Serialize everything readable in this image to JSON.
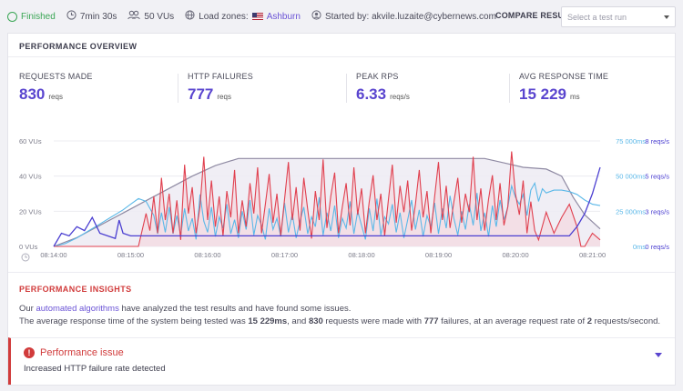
{
  "topbar": {
    "status": "Finished",
    "duration": "7min 30s",
    "vus": "50 VUs",
    "load_zones_label": "Load zones:",
    "load_zone": "Ashburn",
    "started_by": "Started by: akvile.luzaite@cybernews.com",
    "compare_label": "COMPARE RESULT",
    "compare_placeholder": "Select a test run"
  },
  "overview": {
    "title": "PERFORMANCE OVERVIEW",
    "stats": [
      {
        "label": "REQUESTS MADE",
        "value": "830",
        "unit": "reqs"
      },
      {
        "label": "HTTP FAILURES",
        "value": "777",
        "unit": "reqs"
      },
      {
        "label": "PEAK RPS",
        "value": "6.33",
        "unit": "reqs/s"
      },
      {
        "label": "AVG RESPONSE TIME",
        "value": "15 229",
        "unit": "ms"
      }
    ]
  },
  "chart_data": {
    "type": "line",
    "x_ticks": [
      "08:14:00",
      "08:15:00",
      "08:16:00",
      "08:17:00",
      "08:18:00",
      "08:19:00",
      "08:20:00",
      "08:21:00"
    ],
    "y_left_ticks": [
      "0 VUs",
      "20 VUs",
      "40 VUs",
      "60 VUs"
    ],
    "y_right_ms_ticks": [
      "0ms",
      "25 000ms",
      "50 000ms",
      "75 000ms"
    ],
    "y_right_rps_ticks": [
      "0 reqs/s",
      "3 reqs/s",
      "5 reqs/s",
      "8 reqs/s"
    ],
    "ylim_vus": [
      0,
      60
    ],
    "ylim_ms": [
      0,
      75000
    ],
    "ylim_rps": [
      0,
      8
    ],
    "x_range_min": [
      0,
      7.1
    ],
    "colors": {
      "vus": "#8f8aa3",
      "response_time": "#5bb8e8",
      "failures": "#e0404f",
      "rps": "#4b3fd1"
    },
    "vus": [
      [
        0,
        0
      ],
      [
        0.3,
        5
      ],
      [
        0.6,
        12
      ],
      [
        0.9,
        19
      ],
      [
        1.2,
        26
      ],
      [
        1.5,
        33
      ],
      [
        1.8,
        40
      ],
      [
        2.1,
        46
      ],
      [
        2.4,
        50
      ],
      [
        2.6,
        50
      ],
      [
        4.0,
        50
      ],
      [
        5.6,
        50
      ],
      [
        5.9,
        47
      ],
      [
        6.1,
        45
      ],
      [
        6.4,
        44
      ],
      [
        6.6,
        40
      ],
      [
        6.75,
        28
      ],
      [
        6.9,
        18
      ],
      [
        7.0,
        14
      ],
      [
        7.1,
        10
      ]
    ],
    "response_time_ms": [
      [
        0,
        0
      ],
      [
        0.15,
        2000
      ],
      [
        0.3,
        6000
      ],
      [
        0.45,
        11000
      ],
      [
        0.6,
        16000
      ],
      [
        0.75,
        21000
      ],
      [
        0.9,
        26000
      ],
      [
        1.0,
        30000
      ],
      [
        1.1,
        34000
      ],
      [
        1.2,
        32000
      ],
      [
        1.3,
        22000
      ],
      [
        1.35,
        9000
      ],
      [
        1.4,
        24000
      ],
      [
        1.45,
        10000
      ],
      [
        1.5,
        28000
      ],
      [
        1.55,
        9000
      ],
      [
        1.6,
        22000
      ],
      [
        1.65,
        8000
      ],
      [
        1.7,
        27000
      ],
      [
        1.75,
        11000
      ],
      [
        1.8,
        20000
      ],
      [
        1.85,
        5000
      ],
      [
        1.9,
        37000
      ],
      [
        1.95,
        18000
      ],
      [
        2.0,
        10000
      ],
      [
        2.05,
        28000
      ],
      [
        2.1,
        7000
      ],
      [
        2.15,
        21000
      ],
      [
        2.2,
        13000
      ],
      [
        2.25,
        30000
      ],
      [
        2.3,
        9000
      ],
      [
        2.35,
        19000
      ],
      [
        2.4,
        6000
      ],
      [
        2.45,
        25000
      ],
      [
        2.5,
        12000
      ],
      [
        2.55,
        33000
      ],
      [
        2.6,
        8000
      ],
      [
        2.65,
        22000
      ],
      [
        2.7,
        15000
      ],
      [
        2.75,
        5000
      ],
      [
        2.8,
        27000
      ],
      [
        2.85,
        12000
      ],
      [
        2.9,
        20000
      ],
      [
        2.95,
        7000
      ],
      [
        3.0,
        31000
      ],
      [
        3.05,
        10000
      ],
      [
        3.1,
        23000
      ],
      [
        3.15,
        6000
      ],
      [
        3.2,
        18000
      ],
      [
        3.25,
        28000
      ],
      [
        3.3,
        9000
      ],
      [
        3.35,
        21000
      ],
      [
        3.4,
        14000
      ],
      [
        3.45,
        35000
      ],
      [
        3.5,
        8000
      ],
      [
        3.55,
        24000
      ],
      [
        3.6,
        11000
      ],
      [
        3.65,
        29000
      ],
      [
        3.7,
        6000
      ],
      [
        3.75,
        20000
      ],
      [
        3.8,
        13000
      ],
      [
        3.85,
        32000
      ],
      [
        3.9,
        9000
      ],
      [
        3.95,
        25000
      ],
      [
        4.0,
        15000
      ],
      [
        4.05,
        5000
      ],
      [
        4.1,
        27000
      ],
      [
        4.15,
        11000
      ],
      [
        4.2,
        34000
      ],
      [
        4.25,
        8000
      ],
      [
        4.3,
        21000
      ],
      [
        4.35,
        16000
      ],
      [
        4.4,
        30000
      ],
      [
        4.45,
        10000
      ],
      [
        4.5,
        24000
      ],
      [
        4.55,
        6000
      ],
      [
        4.6,
        19000
      ],
      [
        4.65,
        33000
      ],
      [
        4.7,
        12000
      ],
      [
        4.75,
        26000
      ],
      [
        4.8,
        7000
      ],
      [
        4.85,
        22000
      ],
      [
        4.9,
        14000
      ],
      [
        4.95,
        31000
      ],
      [
        5.0,
        9000
      ],
      [
        5.05,
        27000
      ],
      [
        5.1,
        13000
      ],
      [
        5.15,
        36000
      ],
      [
        5.2,
        20000
      ],
      [
        5.25,
        8000
      ],
      [
        5.3,
        25000
      ],
      [
        5.35,
        12000
      ],
      [
        5.4,
        30000
      ],
      [
        5.45,
        15000
      ],
      [
        5.5,
        38000
      ],
      [
        5.55,
        11000
      ],
      [
        5.6,
        24000
      ],
      [
        5.65,
        7000
      ],
      [
        5.7,
        29000
      ],
      [
        5.75,
        14000
      ],
      [
        5.8,
        33000
      ],
      [
        5.85,
        19000
      ],
      [
        5.9,
        28000
      ],
      [
        5.95,
        43000
      ],
      [
        6.0,
        35000
      ],
      [
        6.05,
        30000
      ],
      [
        6.1,
        37000
      ],
      [
        6.15,
        22000
      ],
      [
        6.2,
        40000
      ],
      [
        6.25,
        45000
      ],
      [
        6.3,
        32000
      ],
      [
        6.35,
        41000
      ],
      [
        6.4,
        38000
      ],
      [
        6.5,
        40000
      ],
      [
        6.6,
        40000
      ],
      [
        6.7,
        39000
      ],
      [
        6.8,
        37000
      ],
      [
        6.9,
        33000
      ],
      [
        7.0,
        30000
      ],
      [
        7.1,
        29000
      ]
    ],
    "failures_rps": [
      [
        0,
        0
      ],
      [
        1.0,
        0
      ],
      [
        1.1,
        0
      ],
      [
        1.2,
        2.5
      ],
      [
        1.25,
        1.2
      ],
      [
        1.3,
        3.8
      ],
      [
        1.35,
        1.0
      ],
      [
        1.4,
        5.2
      ],
      [
        1.45,
        2.0
      ],
      [
        1.5,
        4.0
      ],
      [
        1.55,
        1.0
      ],
      [
        1.6,
        3.5
      ],
      [
        1.65,
        0.5
      ],
      [
        1.7,
        6.2
      ],
      [
        1.75,
        2.5
      ],
      [
        1.8,
        4.5
      ],
      [
        1.85,
        1.0
      ],
      [
        1.9,
        3.0
      ],
      [
        1.95,
        6.8
      ],
      [
        2.0,
        2.0
      ],
      [
        2.05,
        5.0
      ],
      [
        2.1,
        1.5
      ],
      [
        2.15,
        3.8
      ],
      [
        2.2,
        0.8
      ],
      [
        2.25,
        4.2
      ],
      [
        2.3,
        2.2
      ],
      [
        2.35,
        5.8
      ],
      [
        2.4,
        1.0
      ],
      [
        2.45,
        3.5
      ],
      [
        2.5,
        1.5
      ],
      [
        2.55,
        4.8
      ],
      [
        2.6,
        2.5
      ],
      [
        2.65,
        6.0
      ],
      [
        2.7,
        1.0
      ],
      [
        2.75,
        3.2
      ],
      [
        2.8,
        5.5
      ],
      [
        2.85,
        1.8
      ],
      [
        2.9,
        4.0
      ],
      [
        2.95,
        0.8
      ],
      [
        3.0,
        3.6
      ],
      [
        3.05,
        6.4
      ],
      [
        3.1,
        2.0
      ],
      [
        3.15,
        4.5
      ],
      [
        3.2,
        1.2
      ],
      [
        3.25,
        5.2
      ],
      [
        3.3,
        2.8
      ],
      [
        3.35,
        0.6
      ],
      [
        3.4,
        4.2
      ],
      [
        3.45,
        2.0
      ],
      [
        3.5,
        6.6
      ],
      [
        3.55,
        1.4
      ],
      [
        3.6,
        3.8
      ],
      [
        3.65,
        5.6
      ],
      [
        3.7,
        1.0
      ],
      [
        3.75,
        3.0
      ],
      [
        3.8,
        4.8
      ],
      [
        3.85,
        1.6
      ],
      [
        3.9,
        6.0
      ],
      [
        3.95,
        2.4
      ],
      [
        4.0,
        4.4
      ],
      [
        4.05,
        1.0
      ],
      [
        4.1,
        3.4
      ],
      [
        4.15,
        5.4
      ],
      [
        4.2,
        2.0
      ],
      [
        4.25,
        4.0
      ],
      [
        4.3,
        0.8
      ],
      [
        4.35,
        3.6
      ],
      [
        4.4,
        6.2
      ],
      [
        4.45,
        1.8
      ],
      [
        4.5,
        4.6
      ],
      [
        4.55,
        2.6
      ],
      [
        4.6,
        5.0
      ],
      [
        4.65,
        1.2
      ],
      [
        4.7,
        3.2
      ],
      [
        4.75,
        5.8
      ],
      [
        4.8,
        2.2
      ],
      [
        4.85,
        4.2
      ],
      [
        4.9,
        1.0
      ],
      [
        4.95,
        3.8
      ],
      [
        5.0,
        6.4
      ],
      [
        5.05,
        2.0
      ],
      [
        5.1,
        4.6
      ],
      [
        5.15,
        1.4
      ],
      [
        5.2,
        3.4
      ],
      [
        5.25,
        5.2
      ],
      [
        5.3,
        1.8
      ],
      [
        5.35,
        4.0
      ],
      [
        5.4,
        2.6
      ],
      [
        5.45,
        6.8
      ],
      [
        5.5,
        2.0
      ],
      [
        5.55,
        4.4
      ],
      [
        5.6,
        1.2
      ],
      [
        5.65,
        3.6
      ],
      [
        5.7,
        5.4
      ],
      [
        5.75,
        2.0
      ],
      [
        5.8,
        4.8
      ],
      [
        5.85,
        1.6
      ],
      [
        5.9,
        3.0
      ],
      [
        5.95,
        7.2
      ],
      [
        6.0,
        4.0
      ],
      [
        6.05,
        2.4
      ],
      [
        6.1,
        5.0
      ],
      [
        6.15,
        1.0
      ],
      [
        6.2,
        3.4
      ],
      [
        6.25,
        1.2
      ],
      [
        6.3,
        0.5
      ],
      [
        6.4,
        2.6
      ],
      [
        6.5,
        1.0
      ],
      [
        6.6,
        2.2
      ],
      [
        6.7,
        3.2
      ],
      [
        6.8,
        1.5
      ],
      [
        6.85,
        0
      ],
      [
        6.9,
        0
      ],
      [
        7.0,
        1.0
      ],
      [
        7.1,
        0.5
      ]
    ],
    "rps": [
      [
        0,
        0
      ],
      [
        0.1,
        1.0
      ],
      [
        0.2,
        0.8
      ],
      [
        0.3,
        1.5
      ],
      [
        0.4,
        1.2
      ],
      [
        0.5,
        2.2
      ],
      [
        0.6,
        1.0
      ],
      [
        0.7,
        0.8
      ],
      [
        0.8,
        0.6
      ],
      [
        0.85,
        2.0
      ],
      [
        0.9,
        1.0
      ],
      [
        1.0,
        0.8
      ],
      [
        1.1,
        0.8
      ],
      [
        1.2,
        0.8
      ],
      [
        6.7,
        0.8
      ],
      [
        6.8,
        1.5
      ],
      [
        6.9,
        2.5
      ],
      [
        7.0,
        4.0
      ],
      [
        7.1,
        6.0
      ]
    ]
  },
  "insights": {
    "title": "PERFORMANCE INSIGHTS",
    "line1_prefix": "Our ",
    "line1_link": "automated algorithms",
    "line1_suffix": " have analyzed the test results and have found some issues.",
    "line2_a": "The average response time of the system being tested was ",
    "line2_b": "15 229ms",
    "line2_c": ", and ",
    "line2_d": "830",
    "line2_e": " requests were made with ",
    "line2_f": "777",
    "line2_g": " failures, at an average request rate of ",
    "line2_h": "2",
    "line2_i": " requests/second."
  },
  "issue": {
    "title": "Performance issue",
    "description": "Increased HTTP failure rate detected"
  }
}
